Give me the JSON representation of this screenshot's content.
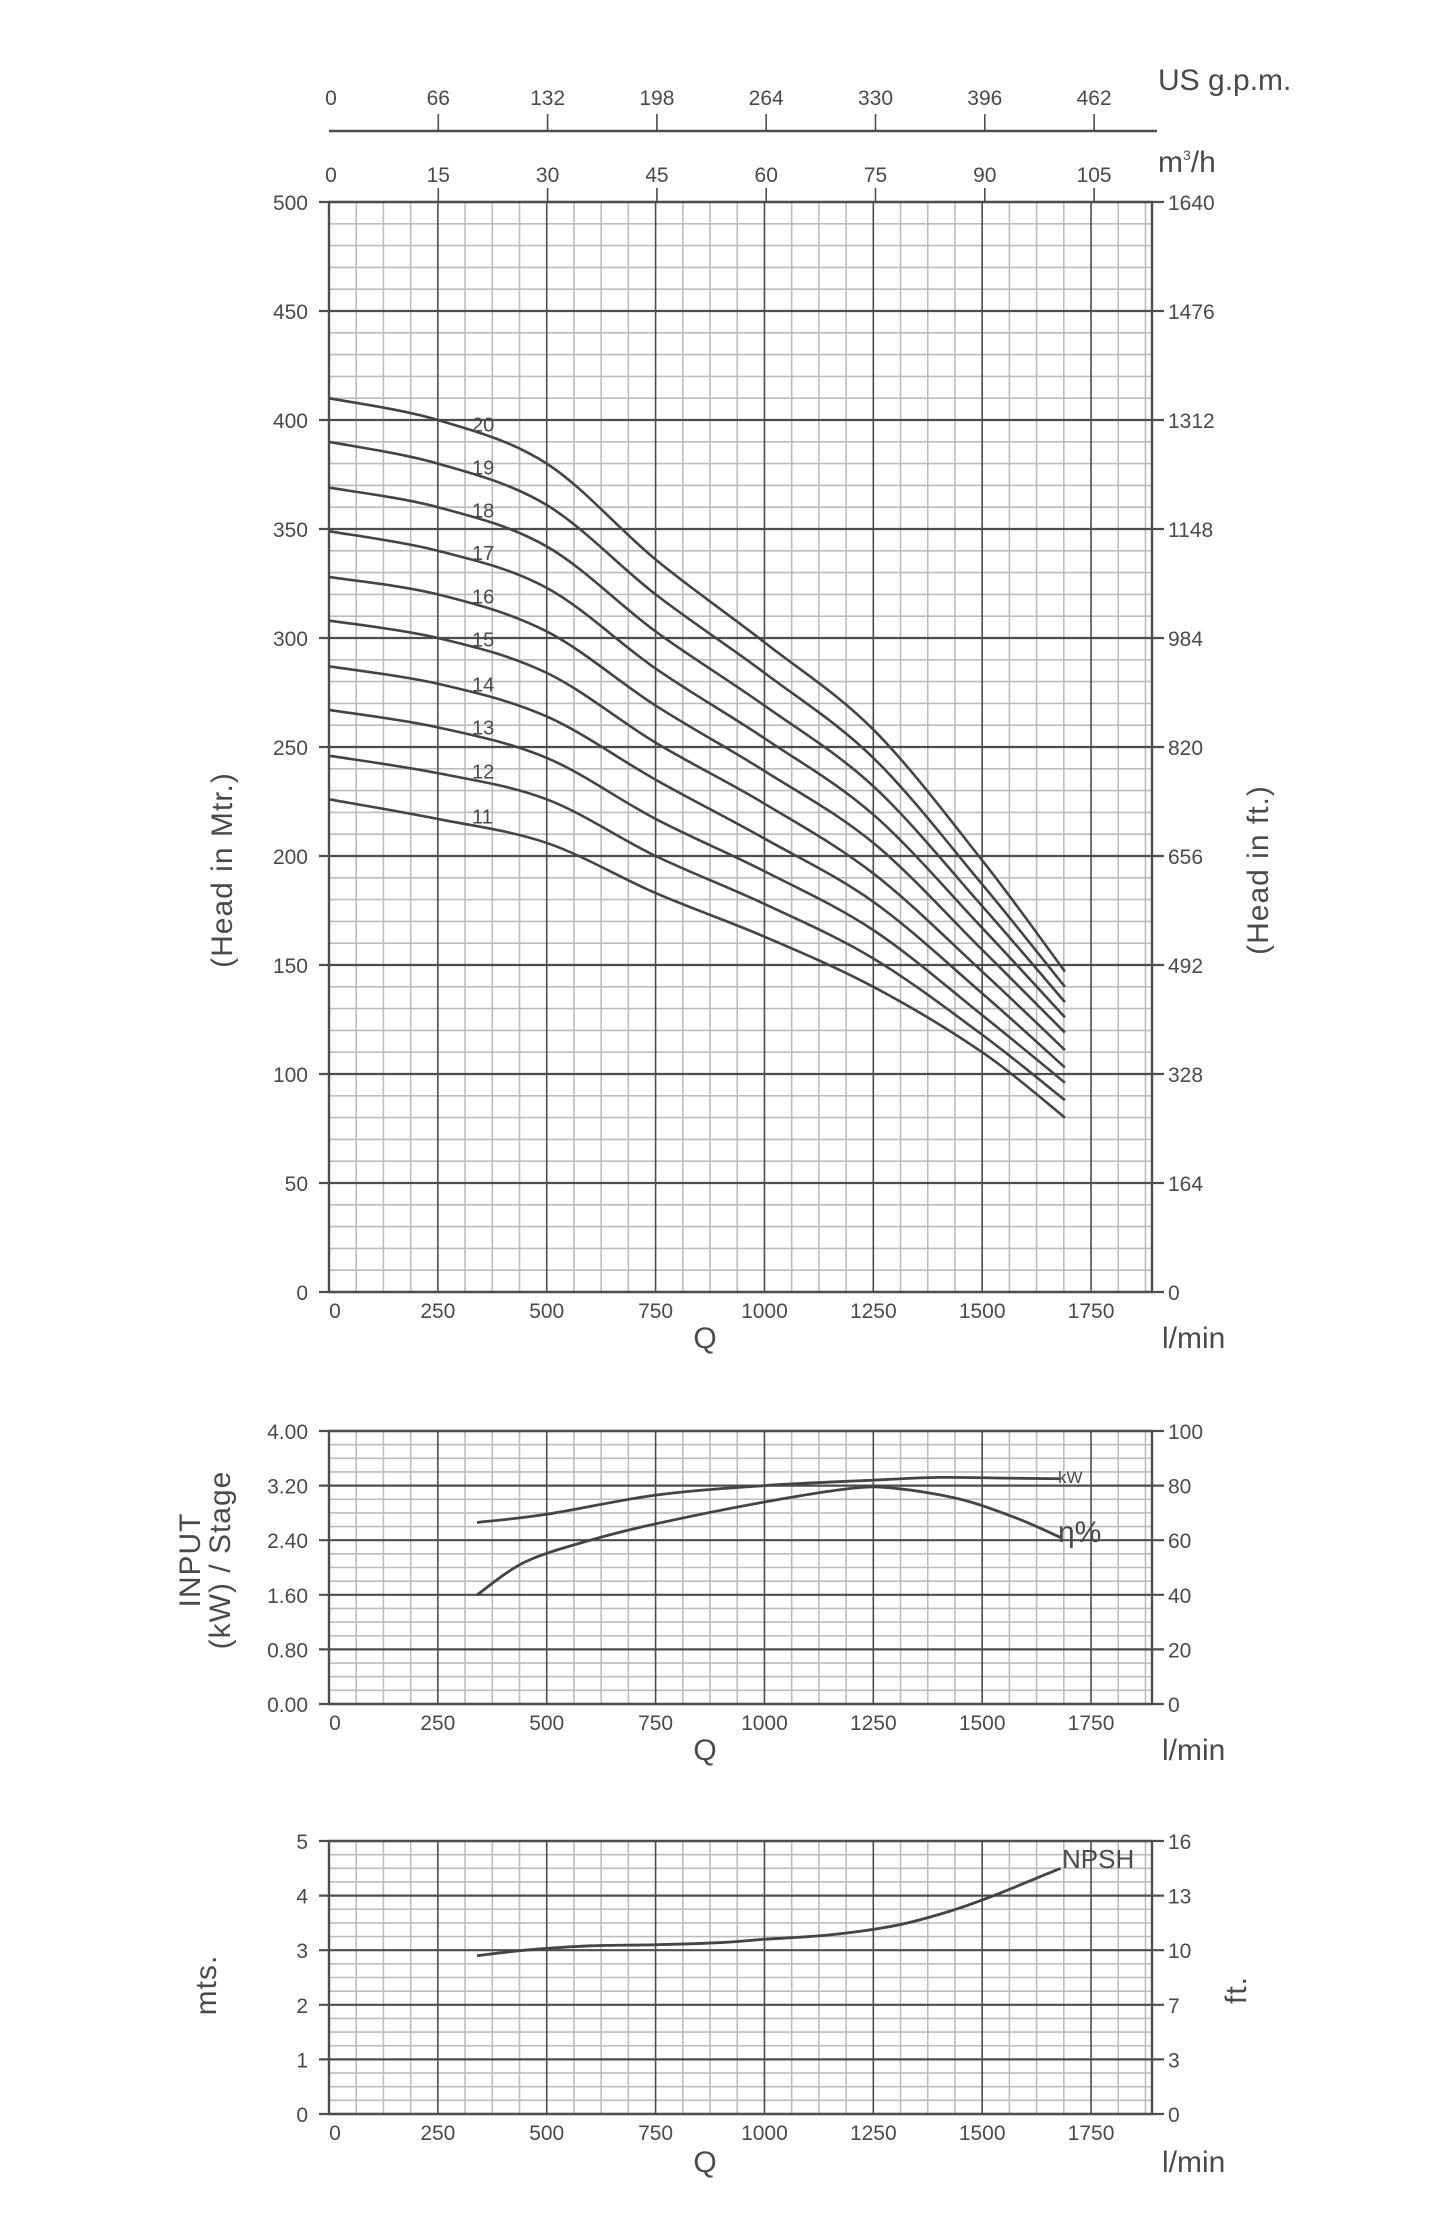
{
  "colors": {
    "major_grid": "#4d4d4d",
    "minor_grid": "#bcbcc0",
    "curve": "#444444",
    "text": "#4a4a4a",
    "background": "#ffffff"
  },
  "top_axes": {
    "gpm": {
      "unit": "US g.p.m.",
      "ticks": [
        "0",
        "66",
        "132",
        "198",
        "264",
        "330",
        "396",
        "462"
      ]
    },
    "m3h": {
      "unit_base": "m",
      "unit_sup": "3",
      "unit_tail": "/h",
      "ticks": [
        "0",
        "15",
        "30",
        "45",
        "60",
        "75",
        "90",
        "105"
      ]
    }
  },
  "chart_data": [
    {
      "type": "line",
      "title": "Head vs Flow (stages 11-20)",
      "xlabel": "Q",
      "x_unit": "l/min",
      "ylabel": "(Head in Mtr.)",
      "ylabel_right": "(Head in ft.)",
      "xlim": [
        0,
        1890
      ],
      "ylim": [
        0,
        500
      ],
      "x_ticks": [
        0,
        250,
        500,
        750,
        1000,
        1250,
        1500,
        1750
      ],
      "y_ticks": [
        0,
        50,
        100,
        150,
        200,
        250,
        300,
        350,
        400,
        450,
        500
      ],
      "y_ticks_right": [
        "0",
        "164",
        "328",
        "492",
        "656",
        "820",
        "984",
        "1148",
        "1312",
        "1476",
        "1640"
      ],
      "grid": true,
      "x": [
        0,
        250,
        500,
        750,
        1000,
        1250,
        1500,
        1690
      ],
      "series": [
        {
          "name": "20",
          "values": [
            410,
            400,
            380,
            336,
            298,
            258,
            198,
            147
          ]
        },
        {
          "name": "19",
          "values": [
            390,
            380,
            361,
            320,
            284,
            245,
            187,
            140
          ]
        },
        {
          "name": "18",
          "values": [
            369,
            360,
            342,
            303,
            269,
            232,
            177,
            133
          ]
        },
        {
          "name": "17",
          "values": [
            349,
            340,
            323,
            286,
            254,
            219,
            167,
            126
          ]
        },
        {
          "name": "16",
          "values": [
            328,
            320,
            303,
            269,
            239,
            206,
            157,
            119
          ]
        },
        {
          "name": "15",
          "values": [
            308,
            300,
            284,
            252,
            224,
            192,
            147,
            111
          ]
        },
        {
          "name": "14",
          "values": [
            287,
            279,
            264,
            235,
            208,
            179,
            137,
            103
          ]
        },
        {
          "name": "13",
          "values": [
            267,
            259,
            245,
            217,
            193,
            166,
            127,
            96
          ]
        },
        {
          "name": "12",
          "values": [
            246,
            238,
            226,
            200,
            178,
            153,
            118,
            88
          ]
        },
        {
          "name": "11",
          "values": [
            226,
            217,
            206,
            183,
            163,
            140,
            110,
            80
          ]
        }
      ]
    },
    {
      "type": "line",
      "title": "Input power per stage and efficiency",
      "xlabel": "Q",
      "x_unit": "l/min",
      "ylabel_line1": "INPUT",
      "ylabel_line2": "(kW) / Stage",
      "xlim": [
        0,
        1890
      ],
      "ylim": [
        0,
        4.0
      ],
      "ylim_right": [
        0,
        100
      ],
      "x_ticks": [
        0,
        250,
        500,
        750,
        1000,
        1250,
        1500,
        1750
      ],
      "y_ticks": [
        "0.00",
        "0.80",
        "1.60",
        "2.40",
        "3.20",
        "4.00"
      ],
      "y_ticks_right": [
        "0",
        "20",
        "40",
        "60",
        "80",
        "100"
      ],
      "grid": true,
      "series": [
        {
          "name": "kW",
          "axis": "left",
          "x": [
            340,
            500,
            750,
            1000,
            1250,
            1400,
            1550,
            1680
          ],
          "values": [
            2.66,
            2.78,
            3.06,
            3.2,
            3.28,
            3.32,
            3.31,
            3.3
          ]
        },
        {
          "name": "η%",
          "axis": "right",
          "x": [
            340,
            450,
            600,
            750,
            1000,
            1200,
            1300,
            1450,
            1580,
            1680
          ],
          "values": [
            40,
            52,
            60,
            66,
            74,
            79,
            79,
            75,
            68,
            61
          ]
        }
      ]
    },
    {
      "type": "line",
      "title": "NPSH",
      "xlabel": "Q",
      "x_unit": "l/min",
      "ylabel": "mts.",
      "ylabel_right": "ft.",
      "xlim": [
        0,
        1890
      ],
      "ylim": [
        0,
        5
      ],
      "x_ticks": [
        0,
        250,
        500,
        750,
        1000,
        1250,
        1500,
        1750
      ],
      "y_ticks": [
        "0",
        "1",
        "2",
        "3",
        "4",
        "5"
      ],
      "y_ticks_right": [
        "0",
        "3",
        "7",
        "10",
        "13",
        "16"
      ],
      "grid": true,
      "series": [
        {
          "name": "NPSH",
          "x": [
            340,
            450,
            600,
            750,
            900,
            1000,
            1150,
            1300,
            1420,
            1520,
            1680
          ],
          "values": [
            2.9,
            3.0,
            3.08,
            3.1,
            3.14,
            3.2,
            3.28,
            3.45,
            3.7,
            3.98,
            4.5
          ]
        }
      ]
    }
  ],
  "labels": {
    "q": "Q",
    "lmin": "l/min",
    "kw": "kW",
    "eta": "η%",
    "npsh": "NPSH"
  }
}
